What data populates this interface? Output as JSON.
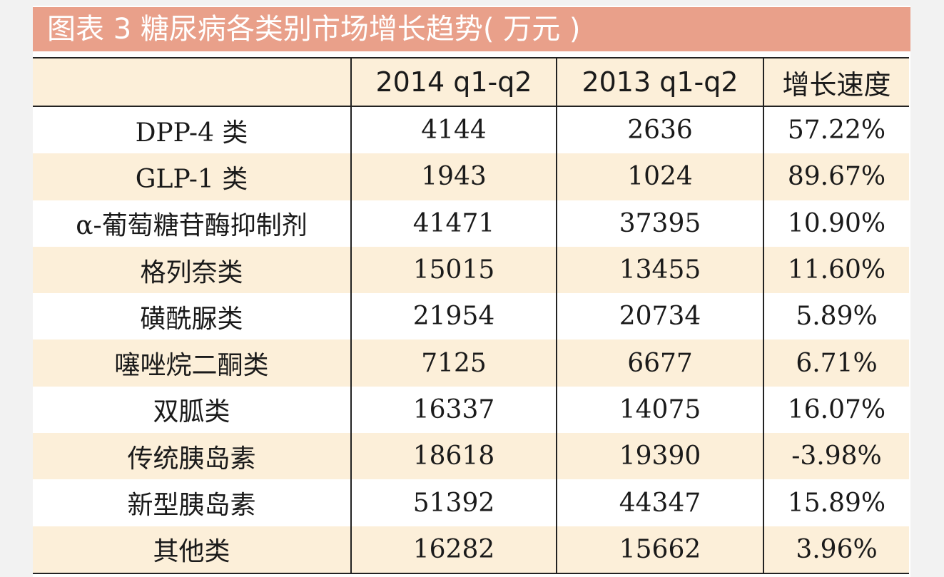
{
  "title": "图表 3    糖尿病各类别市场增长趋势( 万元 )",
  "headers": [
    "",
    "2014  q1-q2",
    "2013  q1-q2",
    "增长速度"
  ],
  "rows": [
    {
      "category": "DPP-4 类",
      "y2014": "4144",
      "y2013": "2636",
      "growth": "57.22%"
    },
    {
      "category": "GLP-1 类",
      "y2014": "1943",
      "y2013": "1024",
      "growth": "89.67%"
    },
    {
      "category": "α-葡萄糖苷酶抑制剂",
      "y2014": "41471",
      "y2013": "37395",
      "growth": "10.90%"
    },
    {
      "category": "格列奈类",
      "y2014": "15015",
      "y2013": "13455",
      "growth": "11.60%"
    },
    {
      "category": "磺酰脲类",
      "y2014": "21954",
      "y2013": "20734",
      "growth": "5.89%"
    },
    {
      "category": "噻唑烷二酮类",
      "y2014": "7125",
      "y2013": "6677",
      "growth": "6.71%"
    },
    {
      "category": "双胍类",
      "y2014": "16337",
      "y2013": "14075",
      "growth": "16.07%"
    },
    {
      "category": "传统胰岛素",
      "y2014": "18618",
      "y2013": "19390",
      "growth": "-3.98%"
    },
    {
      "category": "新型胰岛素",
      "y2014": "51392",
      "y2013": "44347",
      "growth": "15.89%"
    },
    {
      "category": "其他类",
      "y2014": "16282",
      "y2013": "15662",
      "growth": "3.96%"
    }
  ],
  "colors": {
    "title_bg": "#e9a08a",
    "stripe": "#fcefd9",
    "rule": "#222222"
  }
}
